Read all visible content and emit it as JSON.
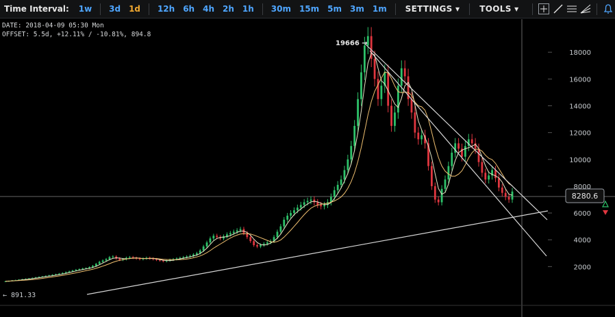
{
  "toolbar": {
    "time_interval_label": "Time Interval:",
    "intervals": [
      "1w",
      "3d",
      "1d",
      "12h",
      "6h",
      "4h",
      "2h",
      "1h",
      "30m",
      "15m",
      "5m",
      "3m",
      "1m"
    ],
    "active_interval": "1d",
    "settings_label": "SETTINGS",
    "tools_label": "TOOLS",
    "tool_icons": [
      "crosshair-icon",
      "trendline-icon",
      "horizontal-lines-icon",
      "fan-icon"
    ],
    "alert_icon": "bell-icon"
  },
  "info": {
    "date_line": "DATE: 2018-04-09 05:30 Mon",
    "offset_line": "OFFSET: 5.5d, +12.11% / -10.81%, 894.8"
  },
  "chart_data": {
    "type": "candlestick",
    "y_axis_ticks": [
      "18000",
      "16000",
      "14000",
      "12000",
      "10000",
      "8000",
      "6000",
      "4000",
      "2000"
    ],
    "price_range": [
      0,
      20500
    ],
    "high_label": "19666",
    "low_label": "891.33",
    "current_price_label": "8280.6",
    "colors": {
      "up": "#2ec26a",
      "down": "#e0363f",
      "ma_fast": "#e9e4c6",
      "ma_slow": "#f0c070",
      "lines": "#d8d8d8",
      "crosshair": "#666666"
    },
    "candles_close": [
      900,
      930,
      960,
      990,
      1020,
      1050,
      1080,
      1110,
      1150,
      1190,
      1230,
      1260,
      1300,
      1340,
      1380,
      1420,
      1470,
      1520,
      1580,
      1640,
      1700,
      1760,
      1800,
      1850,
      1880,
      1950,
      2050,
      2200,
      2350,
      2450,
      2550,
      2700,
      2750,
      2600,
      2500,
      2550,
      2650,
      2700,
      2650,
      2600,
      2550,
      2600,
      2650,
      2600,
      2550,
      2500,
      2450,
      2400,
      2450,
      2500,
      2550,
      2600,
      2650,
      2700,
      2750,
      2800,
      2900,
      3000,
      3200,
      3500,
      3800,
      4100,
      4300,
      4200,
      4100,
      4250,
      4400,
      4500,
      4600,
      4700,
      4800,
      4500,
      4200,
      3900,
      3600,
      3500,
      3600,
      3700,
      3800,
      3900,
      4200,
      4600,
      5000,
      5500,
      5800,
      6000,
      6200,
      6400,
      6600,
      6800,
      6900,
      7000,
      6800,
      6600,
      6500,
      6600,
      6800,
      7200,
      7700,
      8100,
      8500,
      9200,
      10000,
      11000,
      12500,
      14500,
      16500,
      18500,
      19200,
      17500,
      16000,
      14500,
      15500,
      16500,
      14000,
      12500,
      13500,
      15500,
      16800,
      16200,
      14500,
      13500,
      12000,
      11500,
      11800,
      11200,
      9500,
      8000,
      7000,
      6800,
      7800,
      8500,
      9500,
      10500,
      11200,
      10800,
      10200,
      11000,
      11500,
      11200,
      10800,
      9800,
      9000,
      8500,
      8800,
      9200,
      8600,
      7900,
      7500,
      7200,
      7000,
      7600
    ]
  }
}
